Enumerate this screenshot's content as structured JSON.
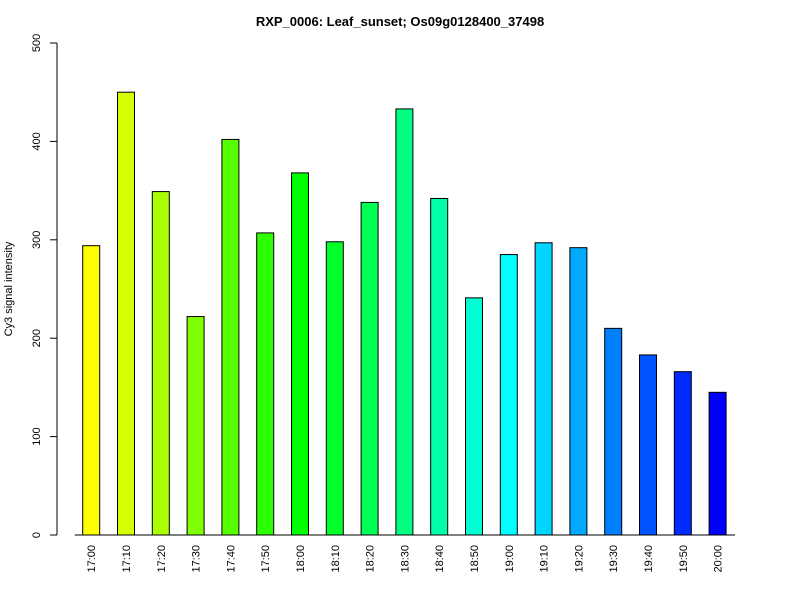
{
  "chart_data": {
    "type": "bar",
    "title": "RXP_0006: Leaf_sunset; Os09g0128400_37498",
    "xlabel": "",
    "ylabel": "Cy3 signal intensity",
    "ylim": [
      0,
      500
    ],
    "yticks": [
      0,
      100,
      200,
      300,
      400,
      500
    ],
    "grid": false,
    "legend": "none",
    "categories": [
      "17:00",
      "17:10",
      "17:20",
      "17:30",
      "17:40",
      "17:50",
      "18:00",
      "18:10",
      "18:20",
      "18:30",
      "18:40",
      "18:50",
      "19:00",
      "19:10",
      "19:20",
      "19:30",
      "19:40",
      "19:50",
      "20:00"
    ],
    "values": [
      294,
      450,
      349,
      222,
      402,
      307,
      368,
      298,
      338,
      433,
      342,
      241,
      285,
      297,
      292,
      210,
      183,
      166,
      145
    ],
    "colors": [
      "#FFFF00",
      "#D4FF00",
      "#AAFF00",
      "#80FF00",
      "#55FF00",
      "#2BFF00",
      "#00FF00",
      "#00FF2B",
      "#00FF55",
      "#00FF80",
      "#00FFAA",
      "#00FFD4",
      "#00FFFF",
      "#00D4FF",
      "#00AAFF",
      "#0080FF",
      "#0055FF",
      "#002BFF",
      "#0000FF"
    ]
  }
}
